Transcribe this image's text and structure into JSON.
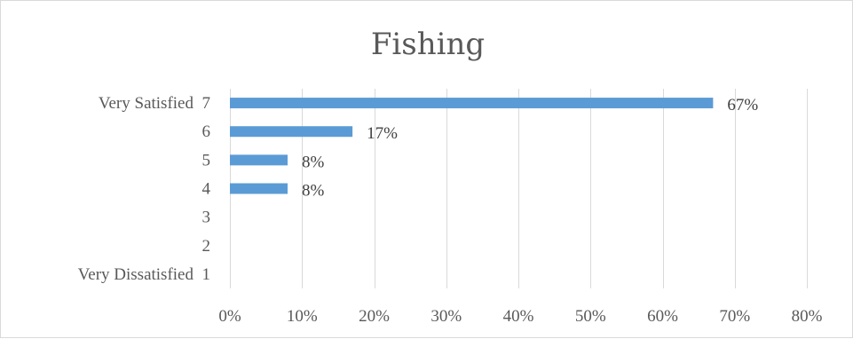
{
  "chart_data": {
    "type": "bar",
    "orientation": "horizontal",
    "title": "Fishing",
    "categories": [
      "Very Satisfied  7",
      "6",
      "5",
      "4",
      "3",
      "2",
      "Very Dissatisfied  1"
    ],
    "values": [
      67,
      17,
      8,
      8,
      0,
      0,
      0
    ],
    "data_labels": [
      "67%",
      "17%",
      "8%",
      "8%",
      "",
      "",
      ""
    ],
    "xlim": [
      0,
      80
    ],
    "x_ticks": [
      0,
      10,
      20,
      30,
      40,
      50,
      60,
      70,
      80
    ],
    "x_tick_labels": [
      "0%",
      "10%",
      "20%",
      "30%",
      "40%",
      "50%",
      "60%",
      "70%",
      "80%"
    ],
    "grid": "vertical",
    "legend": "none",
    "colors": {
      "bar": "#5b9bd5",
      "grid": "#d9d9d9",
      "text": "#595959"
    }
  }
}
